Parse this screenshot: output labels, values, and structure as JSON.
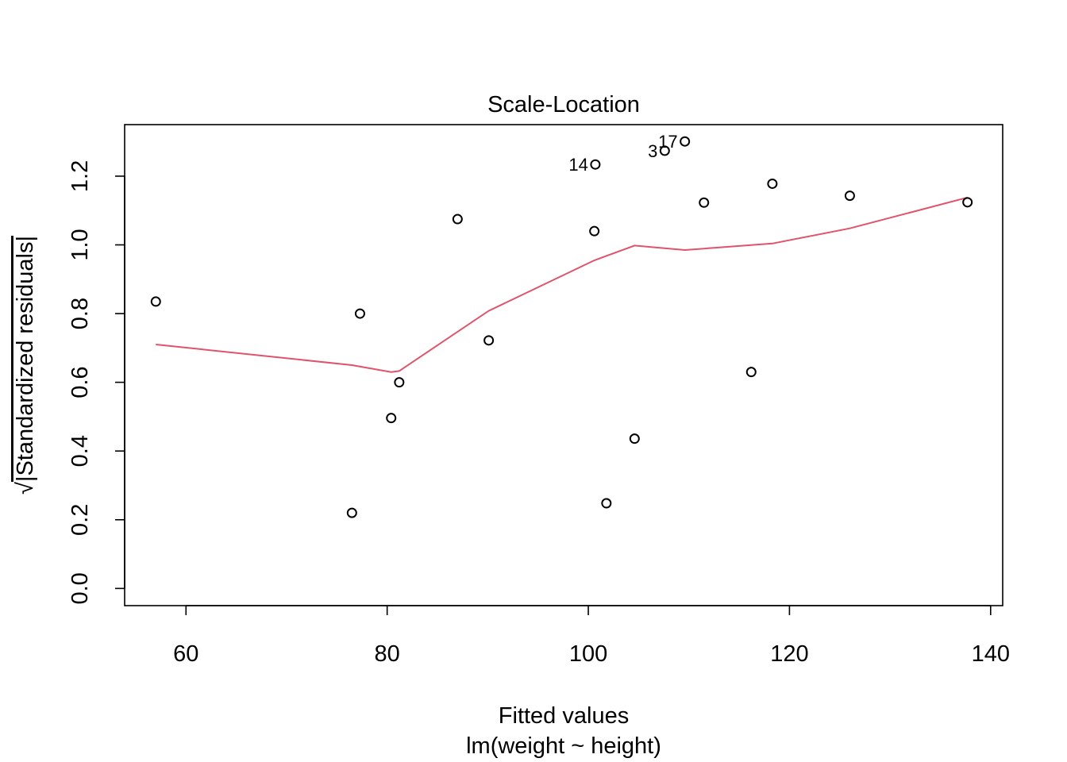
{
  "chart_data": {
    "type": "scatter",
    "title": "Scale-Location",
    "xlabel": "Fitted values",
    "subtitle": "lm(weight ~ height)",
    "ylabel_radical": "√",
    "ylabel": "|Standardized residuals|",
    "xlim": [
      53.9,
      141.2
    ],
    "ylim": [
      -0.05,
      1.35
    ],
    "x_ticks": [
      {
        "value": 60,
        "label": "60"
      },
      {
        "value": 80,
        "label": "80"
      },
      {
        "value": 100,
        "label": "100"
      },
      {
        "value": 120,
        "label": "120"
      },
      {
        "value": 140,
        "label": "140"
      }
    ],
    "y_ticks": [
      {
        "value": 0.0,
        "label": "0.0"
      },
      {
        "value": 0.2,
        "label": "0.2"
      },
      {
        "value": 0.4,
        "label": "0.4"
      },
      {
        "value": 0.6,
        "label": "0.6"
      },
      {
        "value": 0.8,
        "label": "0.8"
      },
      {
        "value": 1.0,
        "label": "1.0"
      },
      {
        "value": 1.2,
        "label": "1.2"
      }
    ],
    "grid": false,
    "points": [
      {
        "x": 57.0,
        "y": 0.835,
        "label": ""
      },
      {
        "x": 76.5,
        "y": 0.22,
        "label": ""
      },
      {
        "x": 77.3,
        "y": 0.8,
        "label": ""
      },
      {
        "x": 80.4,
        "y": 0.496,
        "label": ""
      },
      {
        "x": 81.2,
        "y": 0.6,
        "label": ""
      },
      {
        "x": 87.0,
        "y": 1.075,
        "label": ""
      },
      {
        "x": 90.1,
        "y": 0.722,
        "label": ""
      },
      {
        "x": 100.6,
        "y": 1.04,
        "label": ""
      },
      {
        "x": 100.7,
        "y": 1.234,
        "label": "14"
      },
      {
        "x": 101.8,
        "y": 0.248,
        "label": ""
      },
      {
        "x": 104.6,
        "y": 0.436,
        "label": ""
      },
      {
        "x": 107.6,
        "y": 1.274,
        "label": "3"
      },
      {
        "x": 109.6,
        "y": 1.301,
        "label": "17"
      },
      {
        "x": 111.5,
        "y": 1.123,
        "label": ""
      },
      {
        "x": 116.2,
        "y": 0.63,
        "label": ""
      },
      {
        "x": 118.3,
        "y": 1.178,
        "label": ""
      },
      {
        "x": 126.0,
        "y": 1.143,
        "label": ""
      },
      {
        "x": 137.7,
        "y": 1.124,
        "label": ""
      }
    ],
    "smooth_line": {
      "color": "#DF536B",
      "x": [
        57.0,
        76.5,
        80.4,
        81.2,
        90.1,
        100.6,
        104.6,
        109.6,
        118.3,
        126.0,
        137.7
      ],
      "y": [
        0.71,
        0.65,
        0.63,
        0.633,
        0.808,
        0.955,
        0.998,
        0.985,
        1.004,
        1.048,
        1.138
      ]
    },
    "point_color": "#000000"
  }
}
